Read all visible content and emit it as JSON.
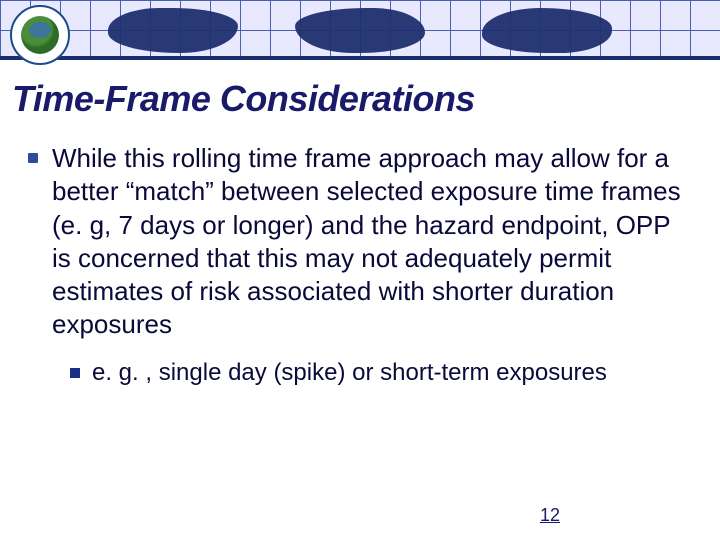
{
  "header": {
    "grid_color": "#4a5fb0",
    "continent_color": "#1e2f6f",
    "underline_color": "#1a2d6b",
    "logo": {
      "border_color": "#1a4b8c",
      "inner_green": "#4a8c3a",
      "inner_blue": "#3a6bc4"
    }
  },
  "title": {
    "text": "Time-Frame Considerations",
    "color": "#1a1a6b",
    "fontsize": 36,
    "italic": true
  },
  "bullets": [
    {
      "text": "While this rolling time frame approach may allow for a better “match” between selected exposure time frames (e. g, 7 days or longer) and the hazard endpoint, OPP is concerned that this may not adequately permit estimates of risk associated with shorter duration exposures",
      "marker_color": "#2e4a9e",
      "fontsize": 26,
      "sub": [
        {
          "text": "e. g. , single day (spike) or short-term exposures",
          "marker_color": "#1a2d8b",
          "fontsize": 24
        }
      ]
    }
  ],
  "page_number": {
    "value": "12",
    "color": "#1a1a6b",
    "fontsize": 18
  },
  "background_color": "#ffffff",
  "text_color": "#0a0a3a"
}
